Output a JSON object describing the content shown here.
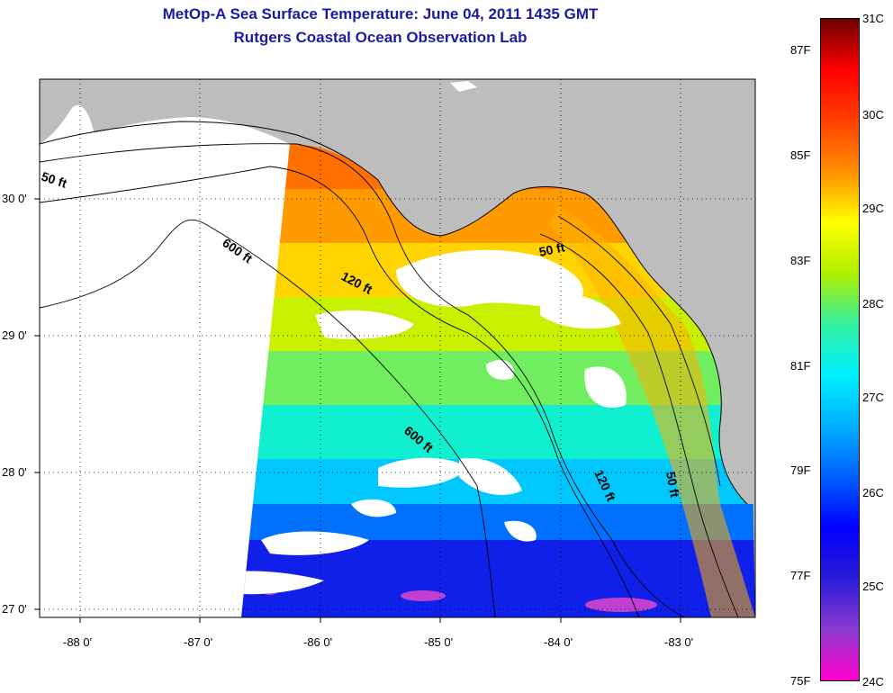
{
  "title": "MetOp-A Sea Surface Temperature:  June 04, 2011 1435 GMT",
  "subtitle": "Rutgers Coastal Ocean Observation Lab",
  "map": {
    "lon_ticks": [
      "-88 0'",
      "-87 0'",
      "-86 0'",
      "-85 0'",
      "-84 0'",
      "-83 0'"
    ],
    "lat_ticks": [
      "30 0'",
      "29 0'",
      "28 0'",
      "27 0'"
    ],
    "contour_labels": {
      "c50_west": "50 ft",
      "c600_north": "600 ft",
      "c120_north": "120 ft",
      "c50_east": "50 ft",
      "c600_south": "600 ft",
      "c120_south": "120 ft",
      "c50_south": "50 ft"
    },
    "colors": {
      "land": "#bdbdbd",
      "coast_land": "#ffffff",
      "no_data": "#ffffff",
      "cloud": "#ffffff"
    }
  },
  "colorbar": {
    "celsius_labels": [
      "31C",
      "30C",
      "29C",
      "28C",
      "27C",
      "26C",
      "25C",
      "24C"
    ],
    "fahrenheit_labels": [
      "87F",
      "85F",
      "83F",
      "81F",
      "79F",
      "77F",
      "75F"
    ],
    "stops": [
      "#ff00cc",
      "#8a3ad0",
      "#2a1cd8",
      "#0000ff",
      "#0060ff",
      "#00b0ff",
      "#00f0ff",
      "#30f0a0",
      "#b0f000",
      "#ffff00",
      "#ff9000",
      "#ff4000",
      "#ff0000",
      "#700000"
    ]
  }
}
